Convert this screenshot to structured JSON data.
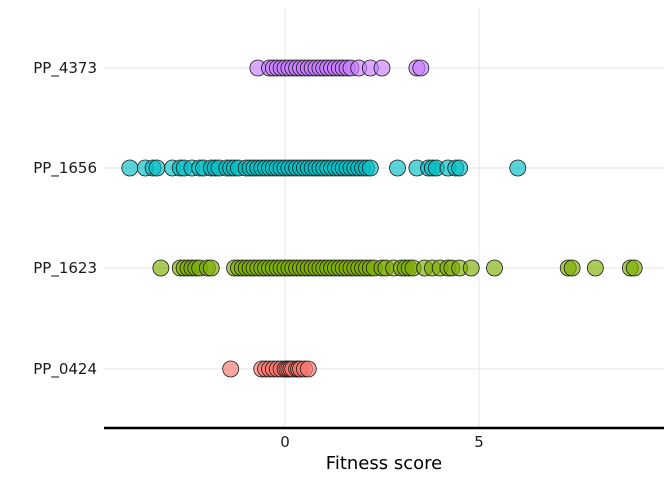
{
  "chart_data": {
    "type": "scatter",
    "title": "",
    "xlabel": "Fitness score",
    "ylabel": "",
    "xlim": [
      -4.5,
      9.5
    ],
    "x_ticks": [
      0,
      5
    ],
    "grid": true,
    "legend": "none",
    "categories": [
      "PP_0424",
      "PP_1623",
      "PP_1656",
      "PP_4373"
    ],
    "series": [
      {
        "category": "PP_0424",
        "color": "#F8766D",
        "x": [
          -1.4,
          -0.6,
          -0.5,
          -0.4,
          -0.3,
          -0.2,
          -0.1,
          0.0,
          0.05,
          0.1,
          0.15,
          0.2,
          0.3,
          0.35,
          0.4,
          0.5,
          0.6
        ]
      },
      {
        "category": "PP_1623",
        "color": "#7CAE00",
        "x": [
          -3.2,
          -2.7,
          -2.6,
          -2.5,
          -2.4,
          -2.3,
          -2.2,
          -2.0,
          -1.9,
          -1.3,
          -1.2,
          -1.1,
          -1.0,
          -0.9,
          -0.8,
          -0.7,
          -0.6,
          -0.5,
          -0.4,
          -0.3,
          -0.2,
          -0.1,
          0.0,
          0.1,
          0.2,
          0.3,
          0.4,
          0.5,
          0.6,
          0.7,
          0.8,
          0.9,
          1.0,
          1.1,
          1.2,
          1.3,
          1.4,
          1.5,
          1.6,
          1.7,
          1.8,
          1.9,
          2.0,
          2.1,
          2.2,
          2.3,
          2.5,
          2.6,
          2.8,
          3.0,
          3.1,
          3.2,
          3.3,
          3.6,
          3.8,
          4.0,
          4.2,
          4.3,
          4.5,
          4.8,
          5.4,
          7.3,
          7.4,
          8.0,
          8.9,
          9.0
        ]
      },
      {
        "category": "PP_1656",
        "color": "#00BFC4",
        "x": [
          -4.0,
          -3.6,
          -3.4,
          -3.3,
          -2.9,
          -2.7,
          -2.6,
          -2.4,
          -2.2,
          -2.1,
          -1.9,
          -1.8,
          -1.7,
          -1.5,
          -1.4,
          -1.3,
          -1.2,
          -1.0,
          -0.9,
          -0.8,
          -0.7,
          -0.6,
          -0.5,
          -0.4,
          -0.3,
          -0.2,
          -0.1,
          0.0,
          0.1,
          0.2,
          0.3,
          0.4,
          0.5,
          0.6,
          0.7,
          0.8,
          0.9,
          1.0,
          1.1,
          1.2,
          1.3,
          1.4,
          1.5,
          1.6,
          1.7,
          1.8,
          1.9,
          2.0,
          2.1,
          2.2,
          2.9,
          3.4,
          3.7,
          3.8,
          3.9,
          4.2,
          4.4,
          4.5,
          6.0
        ]
      },
      {
        "category": "PP_4373",
        "color": "#C77CFF",
        "x": [
          -0.7,
          -0.4,
          -0.3,
          -0.2,
          -0.1,
          0.0,
          0.1,
          0.2,
          0.3,
          0.4,
          0.5,
          0.6,
          0.7,
          0.8,
          0.9,
          1.0,
          1.1,
          1.2,
          1.3,
          1.4,
          1.5,
          1.6,
          1.7,
          1.9,
          2.2,
          2.5,
          3.4,
          3.5
        ]
      }
    ]
  }
}
